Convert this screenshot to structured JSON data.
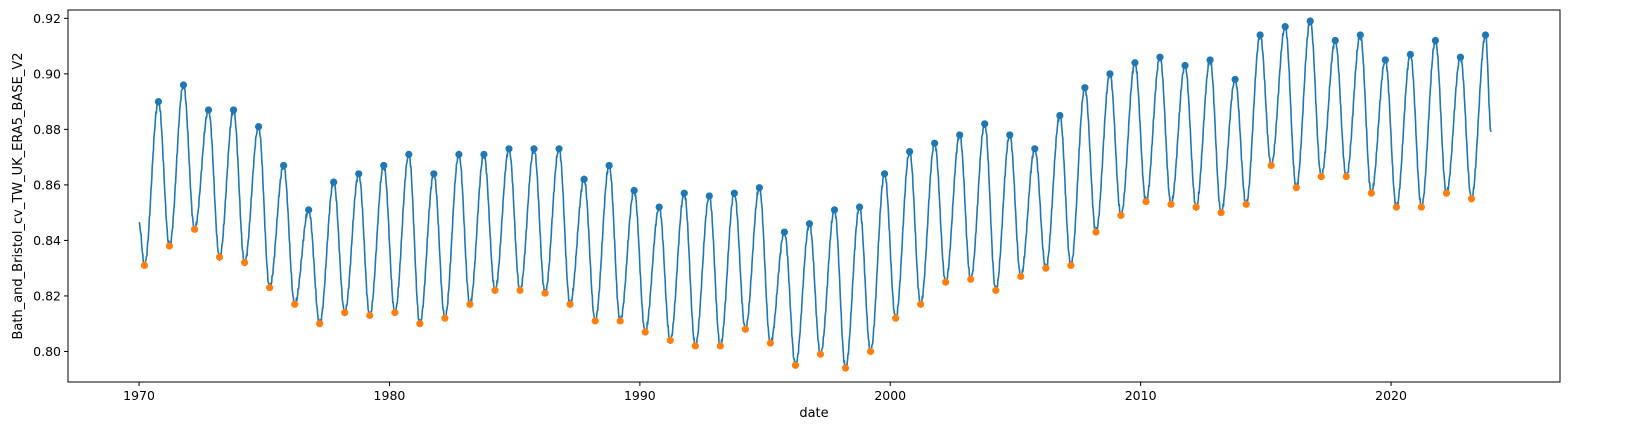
{
  "chart_data": {
    "type": "line",
    "title": "",
    "xlabel": "date",
    "ylabel": "Bath_and_Bristol_cv_TW_UK_ERA5_BASE_V2",
    "xlim": [
      "1967-03-01",
      "2026-10-01"
    ],
    "ylim": [
      0.789,
      0.923
    ],
    "x_ticks": [
      "1970",
      "1980",
      "1990",
      "2000",
      "2010",
      "2020"
    ],
    "y_ticks": [
      "0.80",
      "0.82",
      "0.84",
      "0.86",
      "0.88",
      "0.90",
      "0.92"
    ],
    "grid": false,
    "colors": {
      "line": "#1f77b4",
      "peaks": "#1f77b4",
      "troughs": "#ff7f0e"
    },
    "series": [
      {
        "name": "",
        "role": "line",
        "start": {
          "date": "1970-01-01",
          "value": 0.846
        },
        "end": {
          "date": "2023-12-31",
          "value": 0.879
        }
      },
      {
        "name": "",
        "role": "peaks",
        "points": [
          {
            "date": "1970-10-10",
            "value": 0.89
          },
          {
            "date": "1971-10-10",
            "value": 0.896
          },
          {
            "date": "1972-10-10",
            "value": 0.887
          },
          {
            "date": "1973-10-10",
            "value": 0.887
          },
          {
            "date": "1974-10-10",
            "value": 0.881
          },
          {
            "date": "1975-10-10",
            "value": 0.867
          },
          {
            "date": "1976-10-10",
            "value": 0.851
          },
          {
            "date": "1977-10-10",
            "value": 0.861
          },
          {
            "date": "1978-10-10",
            "value": 0.864
          },
          {
            "date": "1979-10-10",
            "value": 0.867
          },
          {
            "date": "1980-10-10",
            "value": 0.871
          },
          {
            "date": "1981-10-10",
            "value": 0.864
          },
          {
            "date": "1982-10-10",
            "value": 0.871
          },
          {
            "date": "1983-10-10",
            "value": 0.871
          },
          {
            "date": "1984-10-10",
            "value": 0.873
          },
          {
            "date": "1985-10-10",
            "value": 0.873
          },
          {
            "date": "1986-10-10",
            "value": 0.873
          },
          {
            "date": "1987-10-10",
            "value": 0.862
          },
          {
            "date": "1988-10-10",
            "value": 0.867
          },
          {
            "date": "1989-10-10",
            "value": 0.858
          },
          {
            "date": "1990-10-10",
            "value": 0.852
          },
          {
            "date": "1991-10-10",
            "value": 0.857
          },
          {
            "date": "1992-10-10",
            "value": 0.856
          },
          {
            "date": "1993-10-10",
            "value": 0.857
          },
          {
            "date": "1994-10-10",
            "value": 0.859
          },
          {
            "date": "1995-10-10",
            "value": 0.843
          },
          {
            "date": "1996-10-10",
            "value": 0.846
          },
          {
            "date": "1997-10-10",
            "value": 0.851
          },
          {
            "date": "1998-10-10",
            "value": 0.852
          },
          {
            "date": "1999-10-10",
            "value": 0.864
          },
          {
            "date": "2000-10-10",
            "value": 0.872
          },
          {
            "date": "2001-10-10",
            "value": 0.875
          },
          {
            "date": "2002-10-10",
            "value": 0.878
          },
          {
            "date": "2003-10-10",
            "value": 0.882
          },
          {
            "date": "2004-10-10",
            "value": 0.878
          },
          {
            "date": "2005-10-10",
            "value": 0.873
          },
          {
            "date": "2006-10-10",
            "value": 0.885
          },
          {
            "date": "2007-10-10",
            "value": 0.895
          },
          {
            "date": "2008-10-10",
            "value": 0.9
          },
          {
            "date": "2009-10-10",
            "value": 0.904
          },
          {
            "date": "2010-10-10",
            "value": 0.906
          },
          {
            "date": "2011-10-10",
            "value": 0.903
          },
          {
            "date": "2012-10-10",
            "value": 0.905
          },
          {
            "date": "2013-10-10",
            "value": 0.898
          },
          {
            "date": "2014-10-10",
            "value": 0.914
          },
          {
            "date": "2015-10-10",
            "value": 0.917
          },
          {
            "date": "2016-10-10",
            "value": 0.919
          },
          {
            "date": "2017-10-10",
            "value": 0.912
          },
          {
            "date": "2018-10-10",
            "value": 0.914
          },
          {
            "date": "2019-10-10",
            "value": 0.905
          },
          {
            "date": "2020-10-10",
            "value": 0.907
          },
          {
            "date": "2021-10-10",
            "value": 0.912
          },
          {
            "date": "2022-10-10",
            "value": 0.906
          },
          {
            "date": "2023-10-10",
            "value": 0.914
          }
        ]
      },
      {
        "name": "",
        "role": "troughs",
        "points": [
          {
            "date": "1970-03-20",
            "value": 0.831
          },
          {
            "date": "1971-03-20",
            "value": 0.838
          },
          {
            "date": "1972-03-20",
            "value": 0.844
          },
          {
            "date": "1973-03-20",
            "value": 0.834
          },
          {
            "date": "1974-03-20",
            "value": 0.832
          },
          {
            "date": "1975-03-20",
            "value": 0.823
          },
          {
            "date": "1976-03-20",
            "value": 0.817
          },
          {
            "date": "1977-03-20",
            "value": 0.81
          },
          {
            "date": "1978-03-20",
            "value": 0.814
          },
          {
            "date": "1979-03-20",
            "value": 0.813
          },
          {
            "date": "1980-03-20",
            "value": 0.814
          },
          {
            "date": "1981-03-20",
            "value": 0.81
          },
          {
            "date": "1982-03-20",
            "value": 0.812
          },
          {
            "date": "1983-03-20",
            "value": 0.817
          },
          {
            "date": "1984-03-20",
            "value": 0.822
          },
          {
            "date": "1985-03-20",
            "value": 0.822
          },
          {
            "date": "1986-03-20",
            "value": 0.821
          },
          {
            "date": "1987-03-20",
            "value": 0.817
          },
          {
            "date": "1988-03-20",
            "value": 0.811
          },
          {
            "date": "1989-03-20",
            "value": 0.811
          },
          {
            "date": "1990-03-20",
            "value": 0.807
          },
          {
            "date": "1991-03-20",
            "value": 0.804
          },
          {
            "date": "1992-03-20",
            "value": 0.802
          },
          {
            "date": "1993-03-20",
            "value": 0.802
          },
          {
            "date": "1994-03-20",
            "value": 0.808
          },
          {
            "date": "1995-03-20",
            "value": 0.803
          },
          {
            "date": "1996-03-20",
            "value": 0.795
          },
          {
            "date": "1997-03-20",
            "value": 0.799
          },
          {
            "date": "1998-03-20",
            "value": 0.794
          },
          {
            "date": "1999-03-20",
            "value": 0.8
          },
          {
            "date": "2000-03-20",
            "value": 0.812
          },
          {
            "date": "2001-03-20",
            "value": 0.817
          },
          {
            "date": "2002-03-20",
            "value": 0.825
          },
          {
            "date": "2003-03-20",
            "value": 0.826
          },
          {
            "date": "2004-03-20",
            "value": 0.822
          },
          {
            "date": "2005-03-20",
            "value": 0.827
          },
          {
            "date": "2006-03-20",
            "value": 0.83
          },
          {
            "date": "2007-03-20",
            "value": 0.831
          },
          {
            "date": "2008-03-20",
            "value": 0.843
          },
          {
            "date": "2009-03-20",
            "value": 0.849
          },
          {
            "date": "2010-03-20",
            "value": 0.854
          },
          {
            "date": "2011-03-20",
            "value": 0.853
          },
          {
            "date": "2012-03-20",
            "value": 0.852
          },
          {
            "date": "2013-03-20",
            "value": 0.85
          },
          {
            "date": "2014-03-20",
            "value": 0.853
          },
          {
            "date": "2015-03-20",
            "value": 0.867
          },
          {
            "date": "2016-03-20",
            "value": 0.859
          },
          {
            "date": "2017-03-20",
            "value": 0.863
          },
          {
            "date": "2018-03-20",
            "value": 0.863
          },
          {
            "date": "2019-03-20",
            "value": 0.857
          },
          {
            "date": "2020-03-20",
            "value": 0.852
          },
          {
            "date": "2021-03-20",
            "value": 0.852
          },
          {
            "date": "2022-03-20",
            "value": 0.857
          },
          {
            "date": "2023-03-20",
            "value": 0.855
          }
        ]
      }
    ]
  }
}
